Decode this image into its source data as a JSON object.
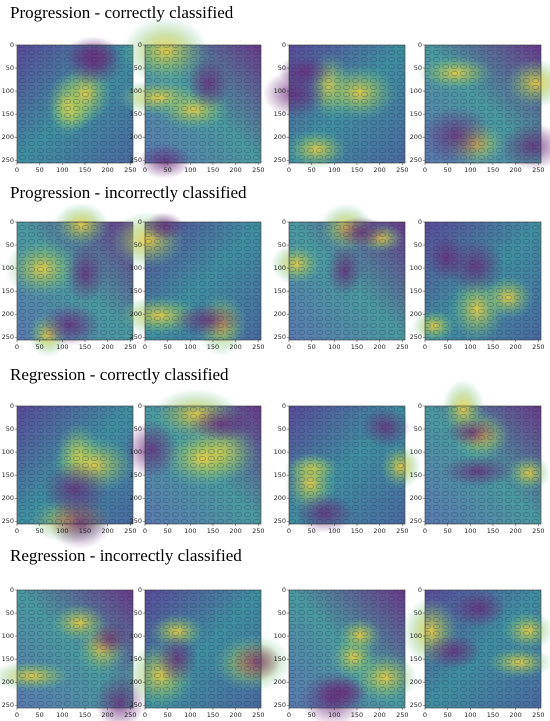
{
  "sections": [
    {
      "title": "Progression - correctly classified"
    },
    {
      "title": "Progression - incorrectly classified"
    },
    {
      "title": "Regression - correctly classified"
    },
    {
      "title": "Regression - incorrectly classified"
    }
  ],
  "axis_ticks": [
    0,
    50,
    100,
    150,
    200,
    250
  ],
  "axis_max": 256
}
